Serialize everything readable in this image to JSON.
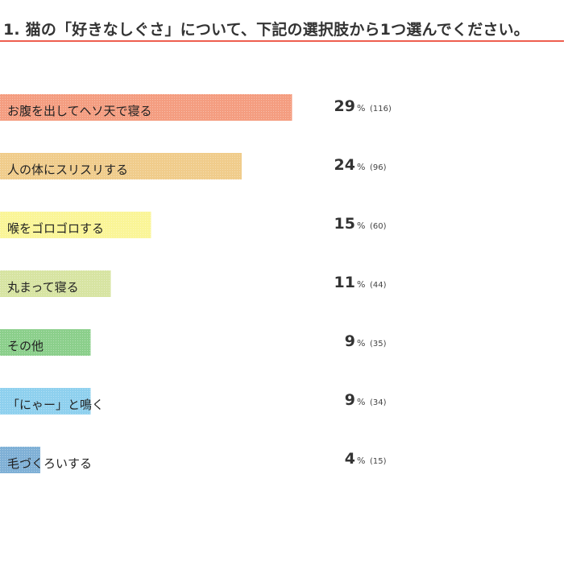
{
  "header": {
    "title": "1. 猫の「好きなしぐさ」について、下記の選択肢から1つ選んでください。"
  },
  "chart_data": {
    "type": "bar",
    "orientation": "horizontal",
    "title": "1. 猫の「好きなしぐさ」について、下記の選択肢から1つ選んでください。",
    "percent_sign": "%",
    "xlim": [
      0,
      100
    ],
    "categories": [
      "お腹を出してヘソ天で寝る",
      "人の体にスリスリする",
      "喉をゴロゴロする",
      "丸まって寝る",
      "その他",
      "「にゃー」と鳴く",
      "毛づくろいする"
    ],
    "values": [
      29,
      24,
      15,
      11,
      9,
      9,
      4
    ],
    "counts": [
      "(116)",
      "(96)",
      "(60)",
      "(44)",
      "(35)",
      "(34)",
      "(15)"
    ],
    "colors": [
      "#f49d80",
      "#f0cc8b",
      "#faf597",
      "#d7e4a2",
      "#8bcf8b",
      "#8ed0ee",
      "#7fb0d6"
    ]
  }
}
